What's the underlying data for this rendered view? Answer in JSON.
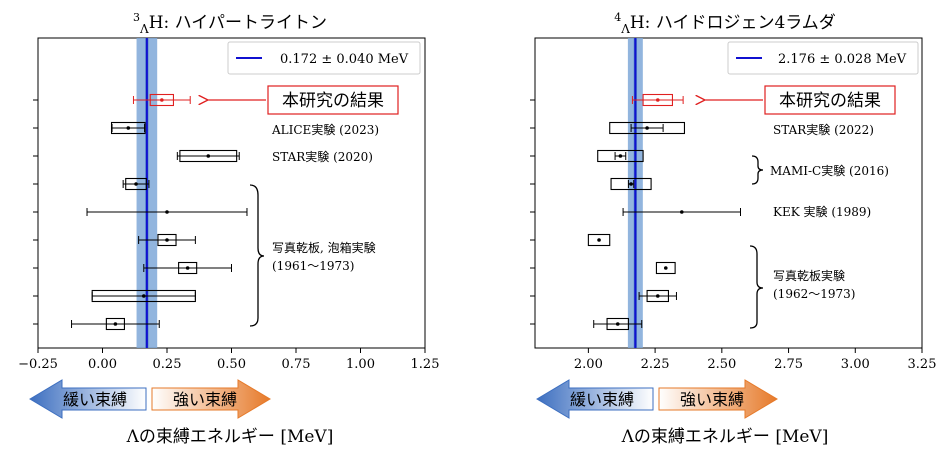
{
  "chart_data": [
    {
      "type": "scatter",
      "title": "³ΛH: ハイパートライトン",
      "title_sup": "3",
      "title_sub": "Λ",
      "title_rest": "H: ハイパートライトン",
      "xlim": [
        -0.25,
        1.25
      ],
      "xticks": [
        "−0.25",
        "0.00",
        "0.25",
        "0.50",
        "0.75",
        "1.00",
        "1.25"
      ],
      "xtick_values": [
        -0.25,
        0.0,
        0.25,
        0.5,
        0.75,
        1.0,
        1.25
      ],
      "xlabel": "Λの束縛エネルギー [MeV]",
      "band": {
        "center": 0.172,
        "half_width": 0.04,
        "inner_half_width": 0.006,
        "legend": "0.172 ± 0.040 MeV"
      },
      "points": [
        {
          "x": 0.23,
          "stat": 0.11,
          "box": 0.045,
          "highlight": true
        },
        {
          "x": 0.1,
          "stat": 0.063,
          "box": 0.065,
          "highlight": false
        },
        {
          "x": 0.41,
          "stat": 0.12,
          "box": 0.11,
          "highlight": false
        },
        {
          "x": 0.13,
          "stat": 0.05,
          "box": 0.04,
          "highlight": false
        },
        {
          "x": 0.25,
          "stat": 0.31,
          "box": 0.0,
          "highlight": false
        },
        {
          "x": 0.25,
          "stat": 0.11,
          "box": 0.035,
          "highlight": false
        },
        {
          "x": 0.33,
          "stat": 0.17,
          "box": 0.035,
          "highlight": false
        },
        {
          "x": 0.16,
          "stat": 0.2,
          "box": 0.2,
          "highlight": false
        },
        {
          "x": 0.05,
          "stat": 0.17,
          "box": 0.035,
          "highlight": false
        }
      ],
      "annotations": {
        "this_work": "本研究の結果",
        "alice": "ALICE実験 (2023)",
        "star": "STAR実験 (2020)",
        "emulsion_line1": "写真乾板, 泡箱実験",
        "emulsion_line2": "(1961〜1973)"
      }
    },
    {
      "type": "scatter",
      "title": "⁴ΛH: ハイドロジェン4ラムダ",
      "title_sup": "4",
      "title_sub": "Λ",
      "title_rest": "H: ハイドロジェン4ラムダ",
      "xlim": [
        1.8,
        3.25
      ],
      "xticks": [
        "2.00",
        "2.25",
        "2.50",
        "2.75",
        "3.00",
        "3.25"
      ],
      "xtick_values": [
        2.0,
        2.25,
        2.5,
        2.75,
        3.0,
        3.25
      ],
      "xlabel": "Λの束縛エネルギー [MeV]",
      "band": {
        "center": 2.176,
        "half_width": 0.028,
        "inner_half_width": 0.006,
        "legend": "2.176 ± 0.028 MeV"
      },
      "points": [
        {
          "x": 2.26,
          "stat": 0.095,
          "box": 0.055,
          "highlight": true
        },
        {
          "x": 2.22,
          "stat": 0.06,
          "box": 0.14,
          "highlight": false
        },
        {
          "x": 2.12,
          "stat": 0.02,
          "box": 0.085,
          "highlight": false
        },
        {
          "x": 2.16,
          "stat": 0.01,
          "box": 0.075,
          "highlight": false
        },
        {
          "x": 2.35,
          "stat": 0.22,
          "box": 0.0,
          "highlight": false
        },
        {
          "x": 2.04,
          "stat": 0.0,
          "box": 0.04,
          "highlight": false
        },
        {
          "x": 2.29,
          "stat": 0.0,
          "box": 0.035,
          "highlight": false
        },
        {
          "x": 2.26,
          "stat": 0.07,
          "box": 0.04,
          "highlight": false
        },
        {
          "x": 2.11,
          "stat": 0.09,
          "box": 0.04,
          "highlight": false
        }
      ],
      "annotations": {
        "this_work": "本研究の結果",
        "star": "STAR実験 (2022)",
        "mami": "MAMI-C実験 (2016)",
        "kek": "KEK 実験 (1989)",
        "emulsion_line1": "写真乾板実験",
        "emulsion_line2": "(1962〜1973)"
      }
    }
  ],
  "arrows": {
    "weak": "緩い束縛",
    "strong": "強い束縛"
  },
  "colors": {
    "band": "#7fa8d8",
    "center_line": "#1010d0",
    "highlight": "#e02020",
    "weak_arrow": "#3d6fc0",
    "strong_arrow": "#e67a2a"
  }
}
